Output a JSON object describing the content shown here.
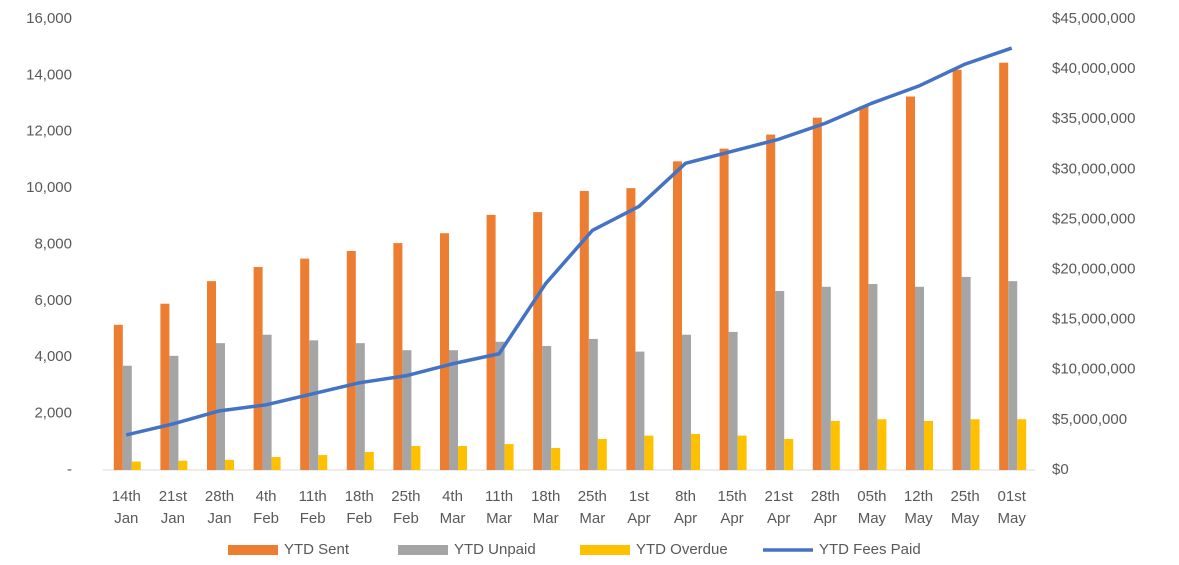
{
  "chart_data": {
    "type": "bar",
    "categories": [
      "14th Jan",
      "21st Jan",
      "28th Jan",
      "4th Feb",
      "11th Feb",
      "18th Feb",
      "25th Feb",
      "4th Mar",
      "11th Mar",
      "18th Mar",
      "25th Mar",
      "1st Apr",
      "8th Apr",
      "15th Apr",
      "21st Apr",
      "28th Apr",
      "05th May",
      "12th May",
      "25th May",
      "01st May"
    ],
    "series": [
      {
        "name": "YTD Sent",
        "color": "#ed7d31",
        "values": [
          5150,
          5900,
          6700,
          7200,
          7500,
          7770,
          8050,
          8400,
          9050,
          9150,
          9900,
          10000,
          10950,
          11400,
          11900,
          12500,
          12900,
          13250,
          14200,
          14450
        ]
      },
      {
        "name": "YTD Unpaid",
        "color": "#a5a5a5",
        "values": [
          3700,
          4050,
          4500,
          4800,
          4600,
          4500,
          4250,
          4250,
          4550,
          4400,
          4650,
          4200,
          4800,
          4900,
          6350,
          6500,
          6600,
          6500,
          6850,
          6700
        ]
      },
      {
        "name": "YTD Overdue",
        "color": "#ffc000",
        "values": [
          300,
          330,
          360,
          460,
          530,
          640,
          850,
          850,
          920,
          780,
          1100,
          1220,
          1280,
          1220,
          1100,
          1740,
          1800,
          1740,
          1800,
          1800
        ]
      },
      {
        "name": "YTD Fees Paid",
        "color": "#4472c4",
        "type": "line",
        "axis": "y2",
        "values": [
          3500000,
          4600000,
          5900000,
          6500000,
          7600000,
          8700000,
          9400000,
          10600000,
          11600000,
          18600000,
          23900000,
          26300000,
          30600000,
          31800000,
          33000000,
          34600000,
          36600000,
          38300000,
          40500000,
          42100000
        ]
      }
    ],
    "ylim": [
      0,
      16000
    ],
    "yticks": [
      {
        "value": 0,
        "label": "-"
      },
      {
        "value": 2000,
        "label": "2,000"
      },
      {
        "value": 4000,
        "label": "4,000"
      },
      {
        "value": 6000,
        "label": "6,000"
      },
      {
        "value": 8000,
        "label": "8,000"
      },
      {
        "value": 10000,
        "label": "10,000"
      },
      {
        "value": 12000,
        "label": "12,000"
      },
      {
        "value": 14000,
        "label": "14,000"
      },
      {
        "value": 16000,
        "label": "16,000"
      }
    ],
    "y2lim": [
      0,
      45000000
    ],
    "y2ticks": [
      {
        "value": 0,
        "label": "$0"
      },
      {
        "value": 5000000,
        "label": "$5,000,000"
      },
      {
        "value": 10000000,
        "label": "$10,000,000"
      },
      {
        "value": 15000000,
        "label": "$15,000,000"
      },
      {
        "value": 20000000,
        "label": "$20,000,000"
      },
      {
        "value": 25000000,
        "label": "$25,000,000"
      },
      {
        "value": 30000000,
        "label": "$30,000,000"
      },
      {
        "value": 35000000,
        "label": "$35,000,000"
      },
      {
        "value": 40000000,
        "label": "$40,000,000"
      },
      {
        "value": 45000000,
        "label": "$45,000,000"
      }
    ],
    "grid": false,
    "legend": "bottom"
  }
}
